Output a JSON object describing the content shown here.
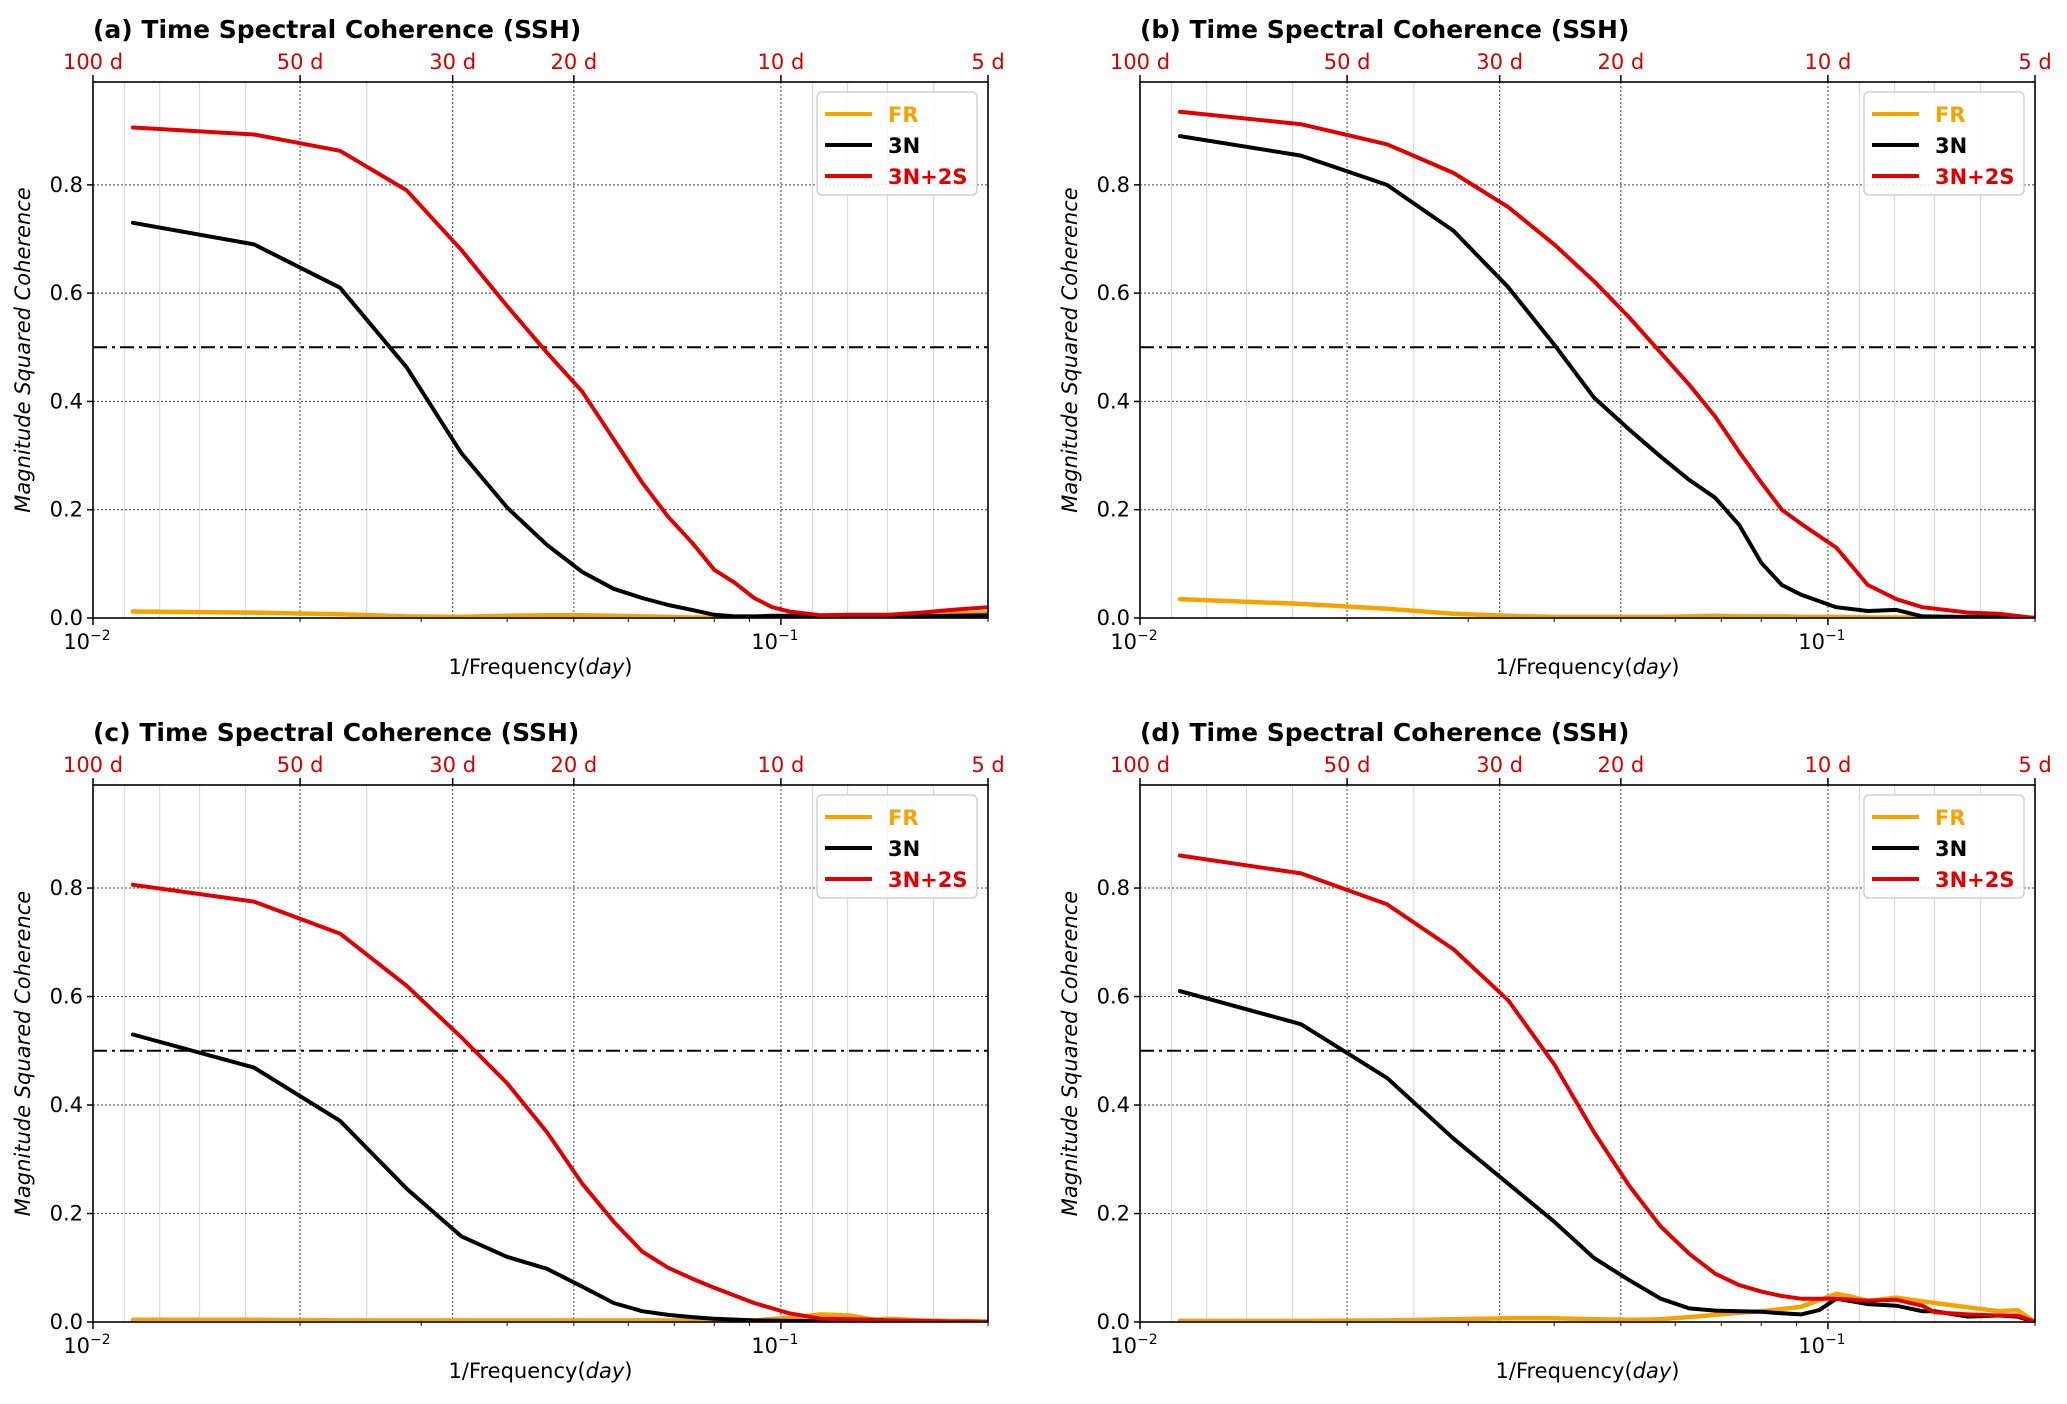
{
  "figure": {
    "description": "Four-panel time spectral coherence comparison"
  },
  "chart_data": [
    {
      "type": "line",
      "panel": "a",
      "title": "(a) Time Spectral Coherence (SSH)",
      "xlabel": "1/Frequency(",
      "xlabel_italic": "day",
      "xlabel_suffix": ")",
      "ylabel": "Magnitude Squared Coherence",
      "xscale": "log",
      "xlim": [
        0.01,
        0.2
      ],
      "ylim": [
        0,
        0.99
      ],
      "yticks": [
        0.0,
        0.2,
        0.4,
        0.6,
        0.8
      ],
      "ytick_labels": [
        "0.0",
        "0.2",
        "0.4",
        "0.6",
        "0.8"
      ],
      "xticks": [
        {
          "value": 0.01,
          "base": "10",
          "exp": "−2"
        },
        {
          "value": 0.1,
          "base": "10",
          "exp": "−1"
        }
      ],
      "top_axis": {
        "ticks": [
          0.01,
          0.02,
          0.03333,
          0.05,
          0.1,
          0.2
        ],
        "labels": [
          "100 d",
          "50 d",
          "30 d",
          "20 d",
          "10 d",
          "5 d"
        ],
        "color": "#d40000"
      },
      "threshold": 0.5,
      "grid": true,
      "legend_position": "top-right",
      "x": [
        0.01143,
        0.01714,
        0.02286,
        0.02857,
        0.03429,
        0.04,
        0.04571,
        0.05143,
        0.05714,
        0.06286,
        0.06857,
        0.07429,
        0.08,
        0.08571,
        0.09143,
        0.09714,
        0.10286,
        0.11429,
        0.12571,
        0.14286,
        0.16,
        0.17714,
        0.2
      ],
      "series": [
        {
          "name": "FR",
          "color": "#f5a300",
          "values": [
            0.012,
            0.01,
            0.007,
            0.003,
            0.002,
            0.004,
            0.005,
            0.005,
            0.004,
            0.003,
            0.002,
            0.001,
            0.001,
            0.001,
            0.001,
            0.001,
            0.002,
            0.002,
            0.003,
            0.004,
            0.006,
            0.008,
            0.01
          ]
        },
        {
          "name": "3N",
          "color": "#000000",
          "values": [
            0.73,
            0.69,
            0.61,
            0.463,
            0.305,
            0.204,
            0.135,
            0.085,
            0.054,
            0.037,
            0.024,
            0.015,
            0.006,
            0.003,
            0.003,
            0.004,
            0.004,
            0.003,
            0.003,
            0.003,
            0.003,
            0.004,
            0.005
          ]
        },
        {
          "name": "3N+2S",
          "color": "#e00000",
          "values": [
            0.906,
            0.893,
            0.863,
            0.79,
            0.68,
            0.576,
            0.49,
            0.418,
            0.33,
            0.25,
            0.187,
            0.139,
            0.089,
            0.065,
            0.037,
            0.02,
            0.012,
            0.005,
            0.006,
            0.006,
            0.01,
            0.015,
            0.02
          ]
        }
      ]
    },
    {
      "type": "line",
      "panel": "b",
      "title": "(b) Time Spectral Coherence (SSH)",
      "xlabel": "1/Frequency(",
      "xlabel_italic": "day",
      "xlabel_suffix": ")",
      "ylabel": "Magnitude Squared Coherence",
      "xscale": "log",
      "xlim": [
        0.01,
        0.2
      ],
      "ylim": [
        0,
        0.99
      ],
      "yticks": [
        0.0,
        0.2,
        0.4,
        0.6,
        0.8
      ],
      "ytick_labels": [
        "0.0",
        "0.2",
        "0.4",
        "0.6",
        "0.8"
      ],
      "xticks": [
        {
          "value": 0.01,
          "base": "10",
          "exp": "−2"
        },
        {
          "value": 0.1,
          "base": "10",
          "exp": "−1"
        }
      ],
      "top_axis": {
        "ticks": [
          0.01,
          0.02,
          0.03333,
          0.05,
          0.1,
          0.2
        ],
        "labels": [
          "100 d",
          "50 d",
          "30 d",
          "20 d",
          "10 d",
          "5 d"
        ],
        "color": "#d40000"
      },
      "threshold": 0.5,
      "grid": true,
      "legend_position": "top-right",
      "x": [
        0.01143,
        0.01714,
        0.02286,
        0.02857,
        0.03429,
        0.04,
        0.04571,
        0.05143,
        0.05714,
        0.06286,
        0.06857,
        0.07429,
        0.08,
        0.08571,
        0.09143,
        0.10286,
        0.11429,
        0.12571,
        0.13714,
        0.16,
        0.17714,
        0.2
      ],
      "series": [
        {
          "name": "FR",
          "color": "#f5a300",
          "values": [
            0.035,
            0.026,
            0.017,
            0.008,
            0.004,
            0.002,
            0.002,
            0.002,
            0.002,
            0.003,
            0.004,
            0.003,
            0.003,
            0.003,
            0.002,
            0.002,
            0.001,
            0.001,
            0.001,
            0.001,
            0.001,
            0.0
          ]
        },
        {
          "name": "3N",
          "color": "#000000",
          "values": [
            0.89,
            0.854,
            0.8,
            0.715,
            0.611,
            0.505,
            0.407,
            0.348,
            0.298,
            0.255,
            0.222,
            0.172,
            0.102,
            0.061,
            0.043,
            0.02,
            0.013,
            0.015,
            0.003,
            0.002,
            0.002,
            0.0
          ]
        },
        {
          "name": "3N+2S",
          "color": "#e00000",
          "values": [
            0.935,
            0.912,
            0.875,
            0.822,
            0.759,
            0.69,
            0.622,
            0.555,
            0.49,
            0.431,
            0.372,
            0.307,
            0.25,
            0.2,
            0.174,
            0.13,
            0.061,
            0.035,
            0.02,
            0.01,
            0.008,
            0.0
          ]
        }
      ]
    },
    {
      "type": "line",
      "panel": "c",
      "title": "(c) Time Spectral Coherence (SSH)",
      "xlabel": "1/Frequency(",
      "xlabel_italic": "day",
      "xlabel_suffix": ")",
      "ylabel": "Magnitude Squared Coherence",
      "xscale": "log",
      "xlim": [
        0.01,
        0.2
      ],
      "ylim": [
        0,
        0.99
      ],
      "yticks": [
        0.0,
        0.2,
        0.4,
        0.6,
        0.8
      ],
      "ytick_labels": [
        "0.0",
        "0.2",
        "0.4",
        "0.6",
        "0.8"
      ],
      "xticks": [
        {
          "value": 0.01,
          "base": "10",
          "exp": "−2"
        },
        {
          "value": 0.1,
          "base": "10",
          "exp": "−1"
        }
      ],
      "top_axis": {
        "ticks": [
          0.01,
          0.02,
          0.03333,
          0.05,
          0.1,
          0.2
        ],
        "labels": [
          "100 d",
          "50 d",
          "30 d",
          "20 d",
          "10 d",
          "5 d"
        ],
        "color": "#d40000"
      },
      "threshold": 0.5,
      "grid": true,
      "legend_position": "top-right",
      "x": [
        0.01143,
        0.01714,
        0.02286,
        0.02857,
        0.03429,
        0.04,
        0.04571,
        0.05143,
        0.05714,
        0.06286,
        0.06857,
        0.07429,
        0.08,
        0.09143,
        0.10286,
        0.11429,
        0.12571,
        0.13714,
        0.14286,
        0.16,
        0.17714,
        0.2
      ],
      "series": [
        {
          "name": "FR",
          "color": "#f5a300",
          "values": [
            0.004,
            0.004,
            0.003,
            0.003,
            0.003,
            0.003,
            0.003,
            0.003,
            0.003,
            0.003,
            0.003,
            0.003,
            0.003,
            0.003,
            0.008,
            0.014,
            0.012,
            0.004,
            0.006,
            0.003,
            0.002,
            0.001
          ]
        },
        {
          "name": "3N",
          "color": "#000000",
          "values": [
            0.53,
            0.469,
            0.371,
            0.246,
            0.158,
            0.12,
            0.098,
            0.065,
            0.035,
            0.02,
            0.013,
            0.009,
            0.006,
            0.003,
            0.002,
            0.002,
            0.002,
            0.002,
            0.002,
            0.001,
            0.001,
            0.0
          ]
        },
        {
          "name": "3N+2S",
          "color": "#e00000",
          "values": [
            0.806,
            0.775,
            0.716,
            0.62,
            0.525,
            0.44,
            0.35,
            0.255,
            0.185,
            0.13,
            0.1,
            0.08,
            0.063,
            0.035,
            0.016,
            0.006,
            0.005,
            0.004,
            0.003,
            0.002,
            0.001,
            0.0
          ]
        }
      ]
    },
    {
      "type": "line",
      "panel": "d",
      "title": "(d) Time Spectral Coherence (SSH)",
      "xlabel": "1/Frequency(",
      "xlabel_italic": "day",
      "xlabel_suffix": ")",
      "ylabel": "Magnitude Squared Coherence",
      "xscale": "log",
      "xlim": [
        0.01,
        0.2
      ],
      "ylim": [
        0,
        0.99
      ],
      "yticks": [
        0.0,
        0.2,
        0.4,
        0.6,
        0.8
      ],
      "ytick_labels": [
        "0.0",
        "0.2",
        "0.4",
        "0.6",
        "0.8"
      ],
      "xticks": [
        {
          "value": 0.01,
          "base": "10",
          "exp": "−2"
        },
        {
          "value": 0.1,
          "base": "10",
          "exp": "−1"
        }
      ],
      "top_axis": {
        "ticks": [
          0.01,
          0.02,
          0.03333,
          0.05,
          0.1,
          0.2
        ],
        "labels": [
          "100 d",
          "50 d",
          "30 d",
          "20 d",
          "10 d",
          "5 d"
        ],
        "color": "#d40000"
      },
      "threshold": 0.5,
      "grid": true,
      "legend_position": "top-right",
      "x": [
        0.01143,
        0.01714,
        0.02286,
        0.02857,
        0.03429,
        0.04,
        0.04571,
        0.05143,
        0.05714,
        0.06286,
        0.06857,
        0.07429,
        0.08,
        0.08571,
        0.09143,
        0.09714,
        0.10286,
        0.10857,
        0.11429,
        0.12571,
        0.13714,
        0.14286,
        0.16,
        0.17714,
        0.18857,
        0.2
      ],
      "series": [
        {
          "name": "FR",
          "color": "#f5a300",
          "values": [
            0.002,
            0.002,
            0.003,
            0.005,
            0.007,
            0.007,
            0.005,
            0.004,
            0.005,
            0.009,
            0.013,
            0.017,
            0.02,
            0.024,
            0.028,
            0.04,
            0.052,
            0.046,
            0.039,
            0.045,
            0.038,
            0.035,
            0.027,
            0.02,
            0.022,
            0.0
          ]
        },
        {
          "name": "3N",
          "color": "#000000",
          "values": [
            0.61,
            0.549,
            0.45,
            0.338,
            0.255,
            0.185,
            0.118,
            0.077,
            0.043,
            0.025,
            0.021,
            0.02,
            0.019,
            0.016,
            0.014,
            0.022,
            0.043,
            0.038,
            0.033,
            0.03,
            0.02,
            0.02,
            0.01,
            0.012,
            0.01,
            0.0
          ]
        },
        {
          "name": "3N+2S",
          "color": "#e00000",
          "values": [
            0.86,
            0.827,
            0.77,
            0.687,
            0.593,
            0.475,
            0.35,
            0.251,
            0.176,
            0.126,
            0.089,
            0.068,
            0.056,
            0.048,
            0.043,
            0.043,
            0.043,
            0.041,
            0.039,
            0.041,
            0.03,
            0.018,
            0.014,
            0.012,
            0.012,
            0.0
          ]
        }
      ]
    }
  ]
}
